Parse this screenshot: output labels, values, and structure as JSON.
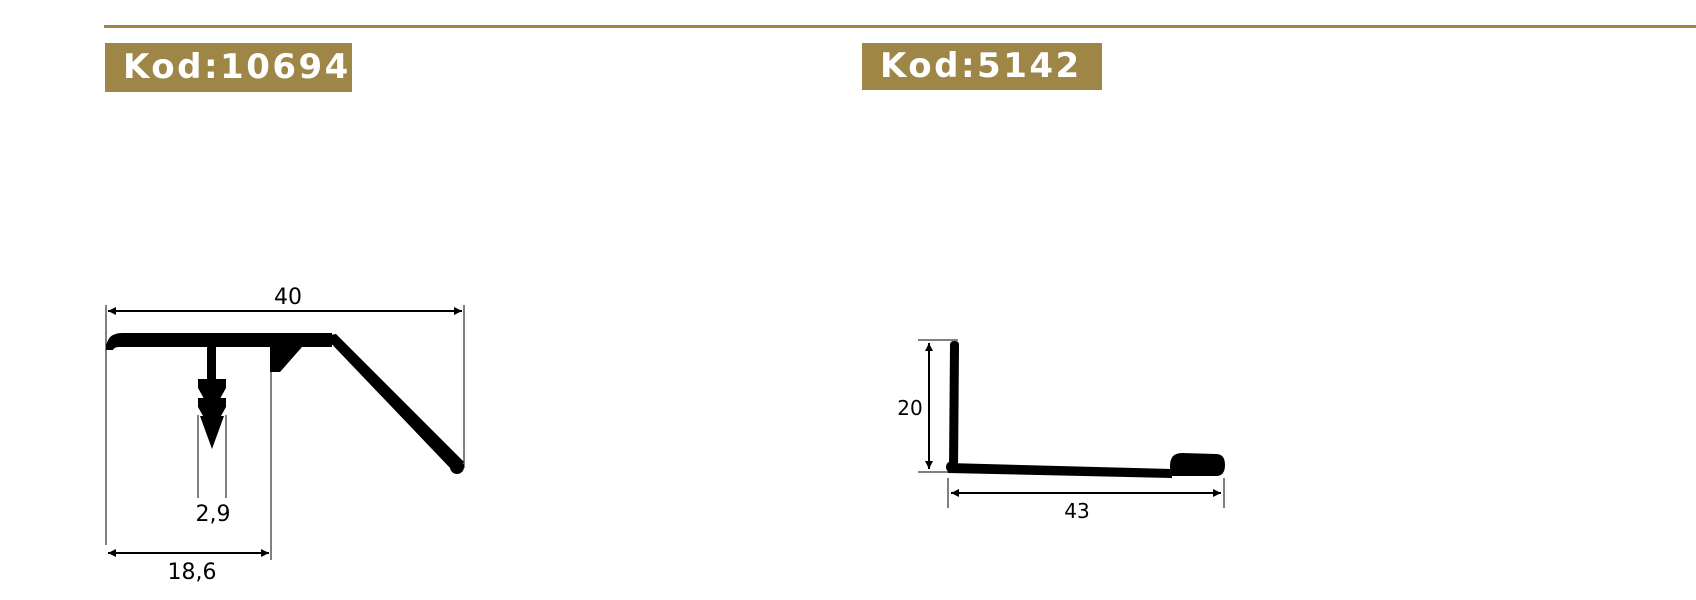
{
  "colors": {
    "accent": "#9d8646",
    "ink": "#000000",
    "background": "#ffffff"
  },
  "profiles": [
    {
      "code_label": "Kod:10694",
      "dimensions": {
        "overall_width": "40",
        "slot_width": "2,9",
        "leg_offset": "18,6"
      }
    },
    {
      "code_label": "Kod:5142",
      "dimensions": {
        "height": "20",
        "width": "43"
      }
    }
  ]
}
